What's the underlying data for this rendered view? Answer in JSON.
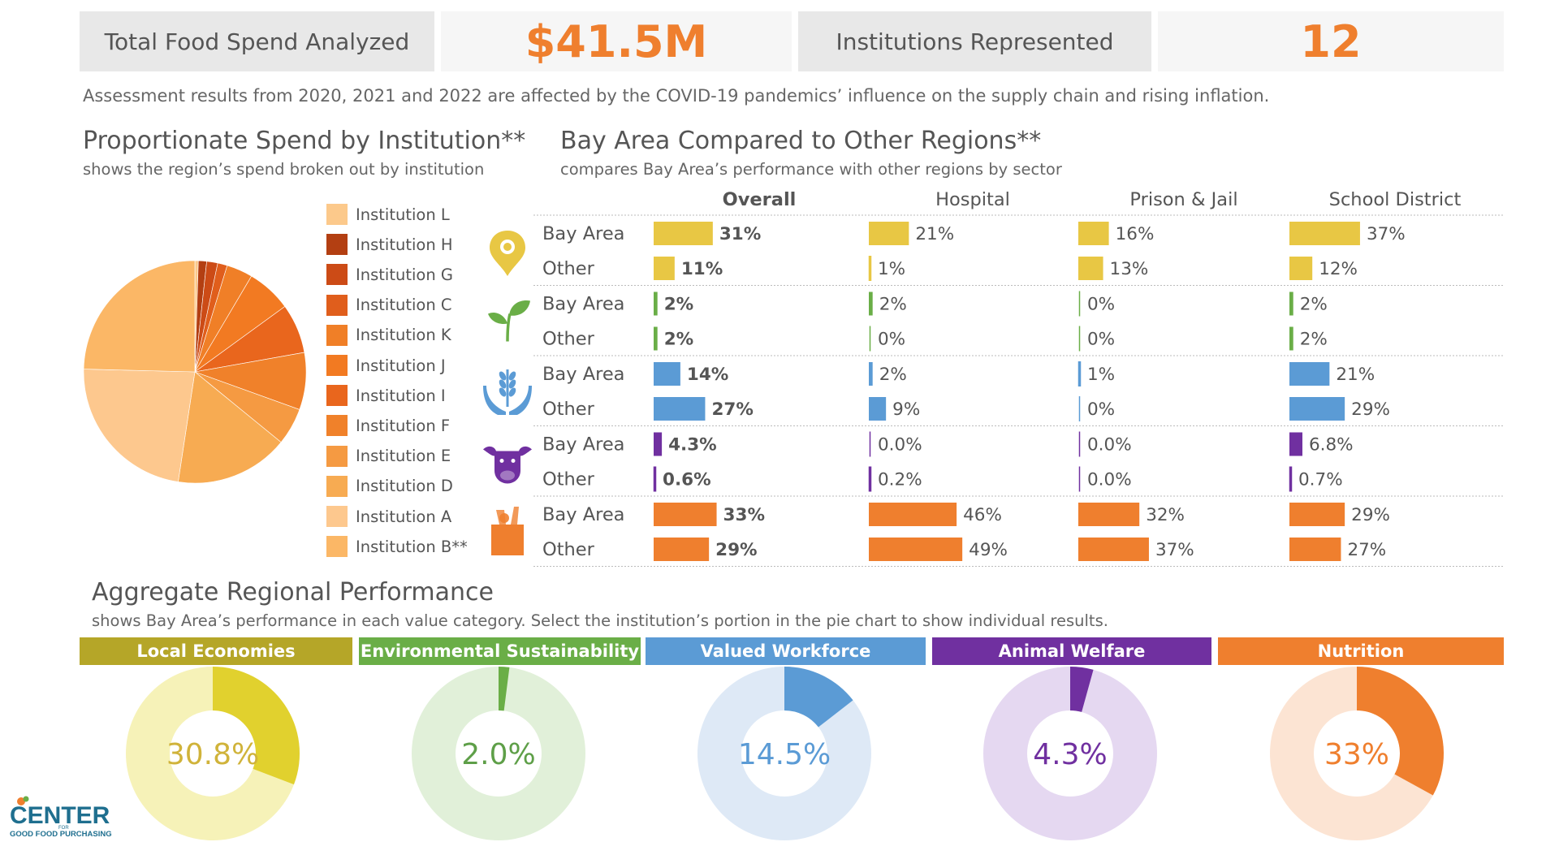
{
  "kpis": {
    "spend_label": "Total Food Spend Analyzed",
    "spend_value": "$41.5M",
    "institutions_label": "Institutions Represented",
    "institutions_value": "12"
  },
  "note": "Assessment results from 2020, 2021 and 2022 are affected by the COVID-19 pandemics’ influence on the supply chain and rising inflation.",
  "pie_section": {
    "title": "Proportionate Spend by Institution**",
    "subtitle": "shows the region’s spend broken out by institution"
  },
  "compare_section": {
    "title": "Bay Area Compared to Other Regions**",
    "subtitle": "compares Bay Area’s performance with other regions by sector"
  },
  "aggregate_section": {
    "title": "Aggregate Regional Performance",
    "subtitle": "shows Bay Area’s performance in each value category. Select the institution’s portion in the pie chart to show individual results."
  },
  "logo": {
    "word": "CENTER",
    "small": "FOR",
    "line": "GOOD FOOD PURCHASING"
  },
  "chart_data": [
    {
      "type": "pie",
      "title": "Proportionate Spend by Institution**",
      "legend_position": "right",
      "slices": [
        {
          "label": "Institution L",
          "value": 0.5,
          "color": "#fcc98b"
        },
        {
          "label": "Institution H",
          "value": 1.2,
          "color": "#b33f12"
        },
        {
          "label": "Institution G",
          "value": 1.6,
          "color": "#cc4b16"
        },
        {
          "label": "Institution C",
          "value": 1.4,
          "color": "#e05e1c"
        },
        {
          "label": "Institution K",
          "value": 3.8,
          "color": "#f07f27"
        },
        {
          "label": "Institution J",
          "value": 6.5,
          "color": "#f27a22"
        },
        {
          "label": "Institution I",
          "value": 7.2,
          "color": "#e9661d"
        },
        {
          "label": "Institution F",
          "value": 8.3,
          "color": "#f0812a"
        },
        {
          "label": "Institution E",
          "value": 5.4,
          "color": "#f59a42"
        },
        {
          "label": "Institution D",
          "value": 16.5,
          "color": "#f7ab52"
        },
        {
          "label": "Institution A",
          "value": 23.0,
          "color": "#fdc88e"
        },
        {
          "label": "Institution B**",
          "value": 24.6,
          "color": "#fbb766"
        }
      ]
    },
    {
      "type": "bar",
      "title": "Bay Area Compared to Other Regions**",
      "columns": [
        "Overall",
        "Hospital",
        "Prison & Jail",
        "School District"
      ],
      "groups": [
        {
          "icon": "local-economies-pin-icon",
          "color": "#e8c744",
          "rows": [
            {
              "label": "Bay Area",
              "values": [
                31,
                21,
                16,
                37
              ],
              "labels": [
                "31%",
                "21%",
                "16%",
                "37%"
              ]
            },
            {
              "label": "Other",
              "values": [
                11,
                1,
                13,
                12
              ],
              "labels": [
                "11%",
                "1%",
                "13%",
                "12%"
              ]
            }
          ]
        },
        {
          "icon": "sprout-icon",
          "color": "#6aae47",
          "rows": [
            {
              "label": "Bay Area",
              "values": [
                2,
                2,
                0,
                2
              ],
              "labels": [
                "2%",
                "2%",
                "0%",
                "2%"
              ]
            },
            {
              "label": "Other",
              "values": [
                2,
                0,
                0,
                2
              ],
              "labels": [
                "2%",
                "0%",
                "0%",
                "2%"
              ]
            }
          ]
        },
        {
          "icon": "hands-wheat-icon",
          "color": "#5b9bd5",
          "rows": [
            {
              "label": "Bay Area",
              "values": [
                14,
                2,
                1,
                21
              ],
              "labels": [
                "14%",
                "2%",
                "1%",
                "21%"
              ]
            },
            {
              "label": "Other",
              "values": [
                27,
                9,
                0,
                29
              ],
              "labels": [
                "27%",
                "9%",
                "0%",
                "29%"
              ]
            }
          ]
        },
        {
          "icon": "cow-icon",
          "color": "#7030a0",
          "rows": [
            {
              "label": "Bay Area",
              "values": [
                4.3,
                0.0,
                0.0,
                6.8
              ],
              "labels": [
                "4.3%",
                "0.0%",
                "0.0%",
                "6.8%"
              ]
            },
            {
              "label": "Other",
              "values": [
                0.6,
                0.2,
                0.0,
                0.7
              ],
              "labels": [
                "0.6%",
                "0.2%",
                "0.0%",
                "0.7%"
              ]
            }
          ]
        },
        {
          "icon": "grocery-bag-icon",
          "color": "#ef7f2e",
          "rows": [
            {
              "label": "Bay Area",
              "values": [
                33,
                46,
                32,
                29
              ],
              "labels": [
                "33%",
                "46%",
                "32%",
                "29%"
              ]
            },
            {
              "label": "Other",
              "values": [
                29,
                49,
                37,
                27
              ],
              "labels": [
                "29%",
                "49%",
                "37%",
                "27%"
              ]
            }
          ]
        }
      ]
    },
    {
      "type": "pie",
      "subtype": "donut",
      "title": "Aggregate Regional Performance",
      "items": [
        {
          "category": "Local Economies",
          "value": 30.8,
          "label": "30.8%",
          "band": "#b5a628",
          "fill": "#e1d12e",
          "track": "#f6f2b8",
          "text": "#d0b33a"
        },
        {
          "category": "Environmental Sustainability",
          "value": 2.0,
          "label": "2.0%",
          "band": "#6aae47",
          "fill": "#6aae47",
          "track": "#e1f0d9",
          "text": "#5e9f48"
        },
        {
          "category": "Valued Workforce",
          "value": 14.5,
          "label": "14.5%",
          "band": "#5b9bd5",
          "fill": "#5b9bd5",
          "track": "#dee9f6",
          "text": "#5b9bd5"
        },
        {
          "category": "Animal Welfare",
          "value": 4.3,
          "label": "4.3%",
          "band": "#7030a0",
          "fill": "#7030a0",
          "track": "#e5d8f1",
          "text": "#7030a0"
        },
        {
          "category": "Nutrition",
          "value": 33,
          "label": "33%",
          "band": "#ef7f2e",
          "fill": "#ef7f2e",
          "track": "#fce4d3",
          "text": "#ef7f2e"
        }
      ]
    }
  ]
}
